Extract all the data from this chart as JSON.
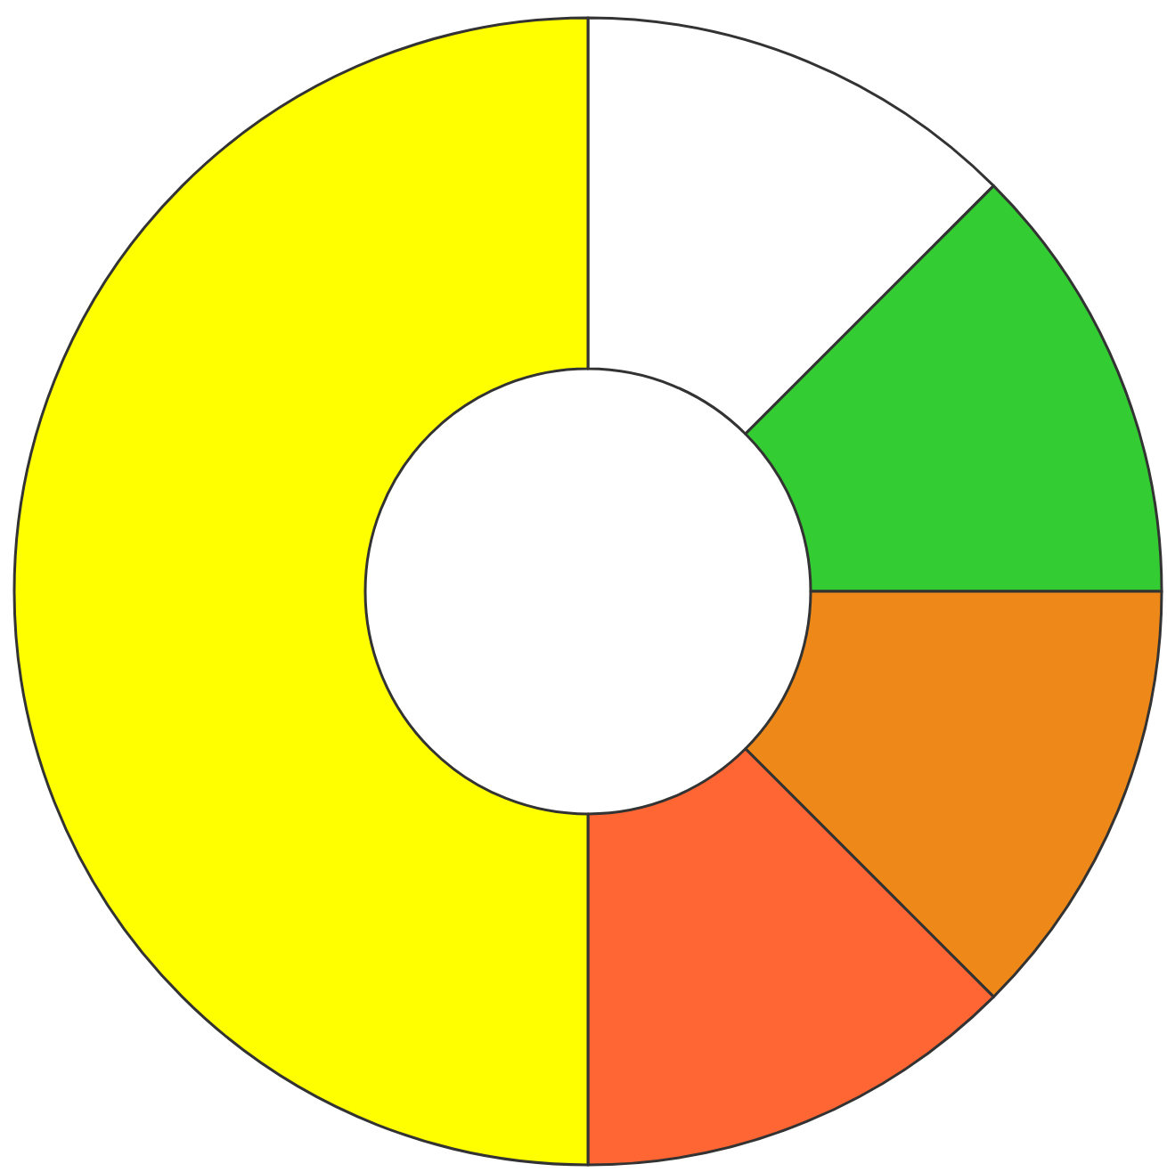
{
  "chart_data": {
    "type": "donut",
    "categories": [
      null,
      null,
      null,
      null,
      null
    ],
    "values": [
      12.5,
      12.5,
      12.5,
      12.5,
      50
    ],
    "colors": [
      "#ffffff",
      "#33cc33",
      "#ee8819",
      "#ff6633",
      "#ffff00"
    ]
  }
}
